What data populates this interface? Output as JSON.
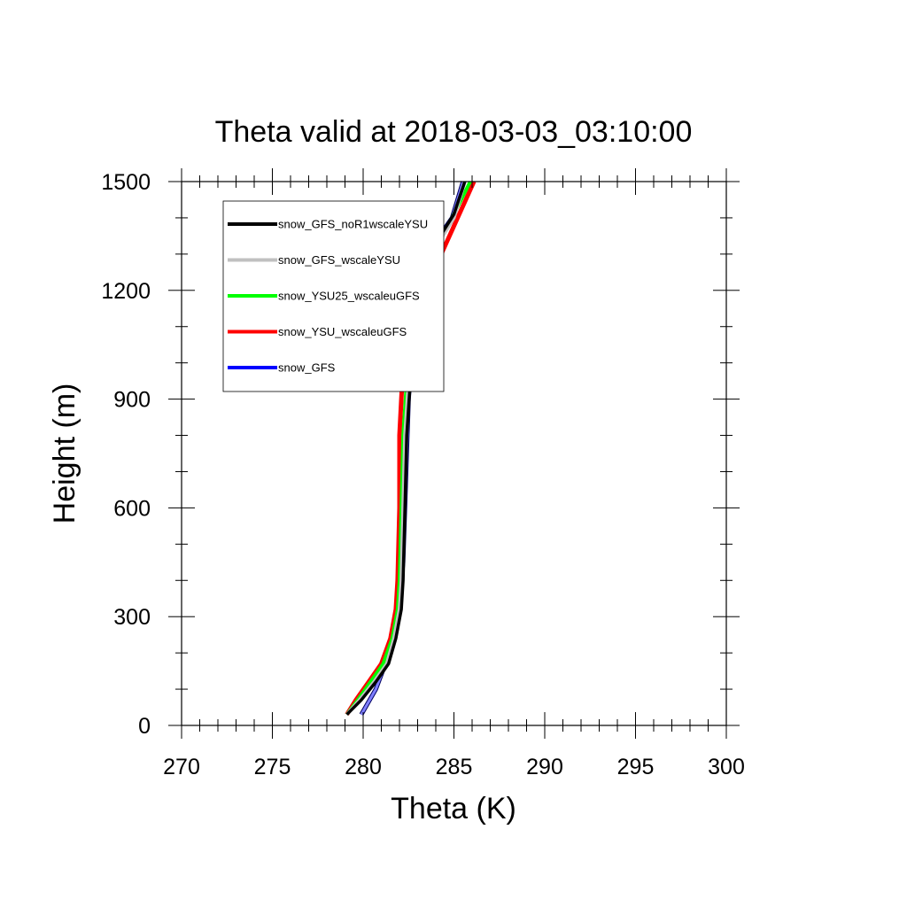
{
  "chart_data": {
    "type": "line",
    "title": "Theta valid at 2018-03-03_03:10:00",
    "xlabel": "Theta (K)",
    "ylabel": "Height (m)",
    "xlim": [
      270,
      300
    ],
    "ylim": [
      0,
      1500
    ],
    "xticks": [
      270,
      275,
      280,
      285,
      290,
      295,
      300
    ],
    "yticks": [
      0,
      300,
      600,
      900,
      1200,
      1500
    ],
    "xticks_labels": [
      "270",
      "275",
      "280",
      "285",
      "290",
      "295",
      "300"
    ],
    "yticks_labels": [
      "0",
      "300",
      "600",
      "900",
      "1200",
      "1500"
    ],
    "x_minor_step": 1,
    "y_minor_step": 100,
    "grid": false,
    "legend_position": "top-left",
    "series": [
      {
        "name": "snow_GFS",
        "color": "#0000ff",
        "x": [
          279.9,
          280.7,
          281.3,
          281.7,
          282.0,
          282.2,
          282.3,
          282.4,
          282.5,
          282.8,
          283.4,
          284.2,
          284.9,
          285.5
        ],
        "y": [
          30,
          100,
          180,
          250,
          340,
          450,
          600,
          750,
          900,
          1100,
          1300,
          1350,
          1400,
          1500
        ]
      },
      {
        "name": "snow_YSU_wscaleuGFS",
        "color": "#ff0000",
        "x": [
          279.1,
          279.6,
          280.3,
          281.0,
          281.5,
          281.8,
          281.9,
          282.0,
          282.0,
          282.1,
          282.2,
          283.0,
          284.3,
          286.1
        ],
        "y": [
          30,
          70,
          120,
          170,
          240,
          320,
          400,
          600,
          800,
          900,
          990,
          1120,
          1300,
          1500
        ]
      },
      {
        "name": "snow_YSU25_wscaleuGFS",
        "color": "#00ff00",
        "x": [
          279.1,
          279.7,
          280.4,
          281.1,
          281.6,
          281.9,
          282.0,
          282.1,
          282.2,
          282.4,
          282.8,
          283.5,
          284.9,
          285.9
        ],
        "y": [
          30,
          70,
          120,
          170,
          240,
          320,
          400,
          600,
          800,
          950,
          1100,
          1280,
          1400,
          1500
        ]
      },
      {
        "name": "snow_GFS_wscaleYSU",
        "color": "#c0c0c0",
        "x": [
          279.1,
          279.8,
          280.6,
          281.3,
          281.7,
          282.0,
          282.1,
          282.2,
          282.3,
          282.5,
          282.9,
          283.5,
          285.0,
          285.6
        ],
        "y": [
          30,
          70,
          120,
          170,
          240,
          320,
          400,
          600,
          800,
          950,
          1100,
          1280,
          1400,
          1500
        ]
      },
      {
        "name": "snow_GFS_noR1wscaleYSU",
        "color": "#000000",
        "x": [
          279.1,
          279.9,
          280.7,
          281.4,
          281.8,
          282.1,
          282.2,
          282.3,
          282.4,
          282.6,
          283.0,
          283.5,
          285.0,
          285.6
        ],
        "y": [
          30,
          70,
          120,
          170,
          240,
          320,
          400,
          600,
          800,
          950,
          1100,
          1290,
          1410,
          1500
        ]
      }
    ]
  }
}
